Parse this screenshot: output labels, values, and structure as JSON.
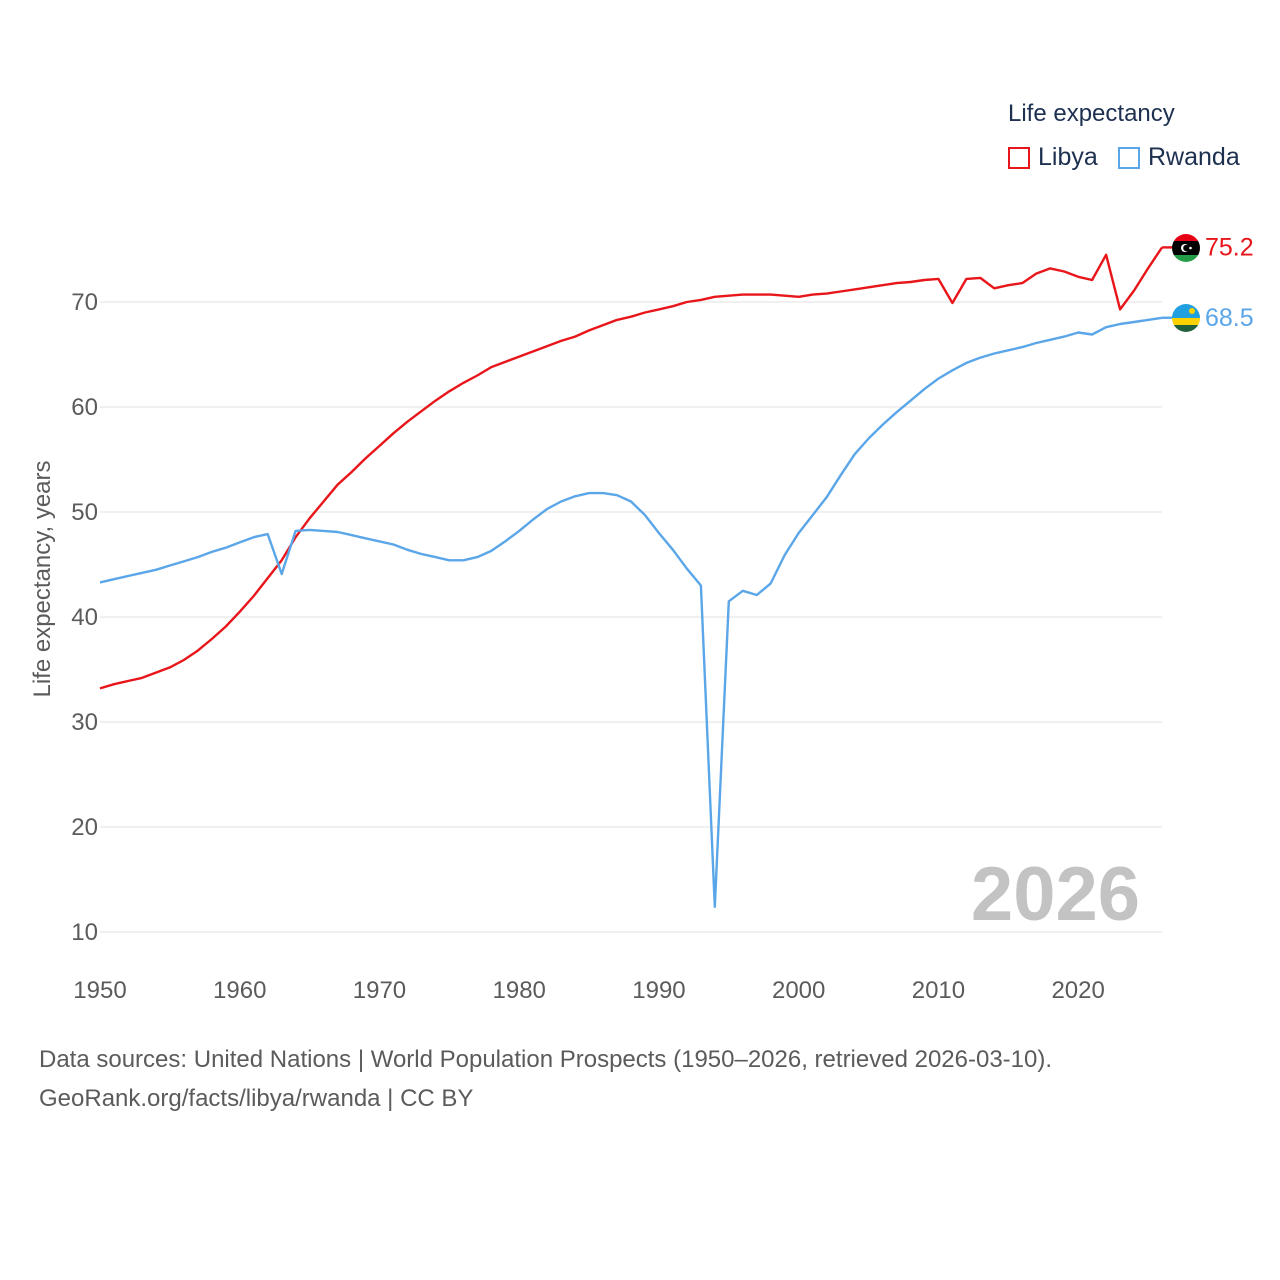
{
  "legend": {
    "title": "Life expectancy",
    "items": [
      "Libya",
      "Rwanda"
    ]
  },
  "colors": {
    "libya": "#e8161a",
    "rwanda": "#5aa6e8",
    "grid": "#e6e6e6",
    "tick": "#5b5b5b",
    "watermark": "#c3c3c3"
  },
  "year_watermark": "2026",
  "footer": {
    "line1": "Data sources: United Nations | World Population Prospects (1950–2026, retrieved 2026-03-10).",
    "line2": "GeoRank.org/facts/libya/rwanda | CC BY"
  },
  "chart_data": {
    "type": "line",
    "title": "Life expectancy",
    "xlabel": "",
    "ylabel": "Life expectancy, years",
    "xlim": [
      1950,
      2026
    ],
    "ylim": [
      10,
      70
    ],
    "xticks": [
      1950,
      1960,
      1970,
      1980,
      1990,
      2000,
      2010,
      2020
    ],
    "yticks": [
      10,
      20,
      30,
      40,
      50,
      60,
      70
    ],
    "grid": true,
    "legend_position": "top-right",
    "series": [
      {
        "name": "Libya",
        "end_label": "75.2",
        "points": [
          [
            1950,
            33.2
          ],
          [
            1951,
            33.6
          ],
          [
            1952,
            33.9
          ],
          [
            1953,
            34.2
          ],
          [
            1954,
            34.7
          ],
          [
            1955,
            35.2
          ],
          [
            1956,
            35.9
          ],
          [
            1957,
            36.8
          ],
          [
            1958,
            37.9
          ],
          [
            1959,
            39.1
          ],
          [
            1960,
            40.5
          ],
          [
            1961,
            42.0
          ],
          [
            1962,
            43.7
          ],
          [
            1963,
            45.4
          ],
          [
            1964,
            47.6
          ],
          [
            1965,
            49.4
          ],
          [
            1966,
            51.0
          ],
          [
            1967,
            52.6
          ],
          [
            1968,
            53.8
          ],
          [
            1969,
            55.1
          ],
          [
            1970,
            56.3
          ],
          [
            1971,
            57.5
          ],
          [
            1972,
            58.6
          ],
          [
            1973,
            59.6
          ],
          [
            1974,
            60.6
          ],
          [
            1975,
            61.5
          ],
          [
            1976,
            62.3
          ],
          [
            1977,
            63.0
          ],
          [
            1978,
            63.8
          ],
          [
            1979,
            64.3
          ],
          [
            1980,
            64.8
          ],
          [
            1981,
            65.3
          ],
          [
            1982,
            65.8
          ],
          [
            1983,
            66.3
          ],
          [
            1984,
            66.7
          ],
          [
            1985,
            67.3
          ],
          [
            1986,
            67.8
          ],
          [
            1987,
            68.3
          ],
          [
            1988,
            68.6
          ],
          [
            1989,
            69.0
          ],
          [
            1990,
            69.3
          ],
          [
            1991,
            69.6
          ],
          [
            1992,
            70.0
          ],
          [
            1993,
            70.2
          ],
          [
            1994,
            70.5
          ],
          [
            1995,
            70.6
          ],
          [
            1996,
            70.7
          ],
          [
            1997,
            70.7
          ],
          [
            1998,
            70.7
          ],
          [
            1999,
            70.6
          ],
          [
            2000,
            70.5
          ],
          [
            2001,
            70.7
          ],
          [
            2002,
            70.8
          ],
          [
            2003,
            71.0
          ],
          [
            2004,
            71.2
          ],
          [
            2005,
            71.4
          ],
          [
            2006,
            71.6
          ],
          [
            2007,
            71.8
          ],
          [
            2008,
            71.9
          ],
          [
            2009,
            72.1
          ],
          [
            2010,
            72.2
          ],
          [
            2011,
            69.9
          ],
          [
            2012,
            72.2
          ],
          [
            2013,
            72.3
          ],
          [
            2014,
            71.3
          ],
          [
            2015,
            71.6
          ],
          [
            2016,
            71.8
          ],
          [
            2017,
            72.7
          ],
          [
            2018,
            73.2
          ],
          [
            2019,
            72.9
          ],
          [
            2020,
            72.4
          ],
          [
            2021,
            72.1
          ],
          [
            2022,
            74.5
          ],
          [
            2023,
            69.3
          ],
          [
            2024,
            71.1
          ],
          [
            2025,
            73.2
          ],
          [
            2026,
            75.2
          ]
        ]
      },
      {
        "name": "Rwanda",
        "end_label": "68.5",
        "points": [
          [
            1950,
            43.3
          ],
          [
            1951,
            43.6
          ],
          [
            1952,
            43.9
          ],
          [
            1953,
            44.2
          ],
          [
            1954,
            44.5
          ],
          [
            1955,
            44.9
          ],
          [
            1956,
            45.3
          ],
          [
            1957,
            45.7
          ],
          [
            1958,
            46.2
          ],
          [
            1959,
            46.6
          ],
          [
            1960,
            47.1
          ],
          [
            1961,
            47.6
          ],
          [
            1962,
            47.9
          ],
          [
            1963,
            44.1
          ],
          [
            1964,
            48.2
          ],
          [
            1965,
            48.3
          ],
          [
            1966,
            48.2
          ],
          [
            1967,
            48.1
          ],
          [
            1968,
            47.8
          ],
          [
            1969,
            47.5
          ],
          [
            1970,
            47.2
          ],
          [
            1971,
            46.9
          ],
          [
            1972,
            46.4
          ],
          [
            1973,
            46.0
          ],
          [
            1974,
            45.7
          ],
          [
            1975,
            45.4
          ],
          [
            1976,
            45.4
          ],
          [
            1977,
            45.7
          ],
          [
            1978,
            46.3
          ],
          [
            1979,
            47.2
          ],
          [
            1980,
            48.2
          ],
          [
            1981,
            49.3
          ],
          [
            1982,
            50.3
          ],
          [
            1983,
            51.0
          ],
          [
            1984,
            51.5
          ],
          [
            1985,
            51.8
          ],
          [
            1986,
            51.8
          ],
          [
            1987,
            51.6
          ],
          [
            1988,
            51.0
          ],
          [
            1989,
            49.7
          ],
          [
            1990,
            48.0
          ],
          [
            1991,
            46.4
          ],
          [
            1992,
            44.6
          ],
          [
            1993,
            43.0
          ],
          [
            1994,
            12.4
          ],
          [
            1995,
            41.5
          ],
          [
            1996,
            42.5
          ],
          [
            1997,
            42.1
          ],
          [
            1998,
            43.2
          ],
          [
            1999,
            45.9
          ],
          [
            2000,
            48.0
          ],
          [
            2001,
            49.7
          ],
          [
            2002,
            51.4
          ],
          [
            2003,
            53.5
          ],
          [
            2004,
            55.5
          ],
          [
            2005,
            57.0
          ],
          [
            2006,
            58.3
          ],
          [
            2007,
            59.5
          ],
          [
            2008,
            60.6
          ],
          [
            2009,
            61.7
          ],
          [
            2010,
            62.7
          ],
          [
            2011,
            63.5
          ],
          [
            2012,
            64.2
          ],
          [
            2013,
            64.7
          ],
          [
            2014,
            65.1
          ],
          [
            2015,
            65.4
          ],
          [
            2016,
            65.7
          ],
          [
            2017,
            66.1
          ],
          [
            2018,
            66.4
          ],
          [
            2019,
            66.7
          ],
          [
            2020,
            67.1
          ],
          [
            2021,
            66.9
          ],
          [
            2022,
            67.6
          ],
          [
            2023,
            67.9
          ],
          [
            2024,
            68.1
          ],
          [
            2025,
            68.3
          ],
          [
            2026,
            68.5
          ]
        ]
      }
    ]
  }
}
